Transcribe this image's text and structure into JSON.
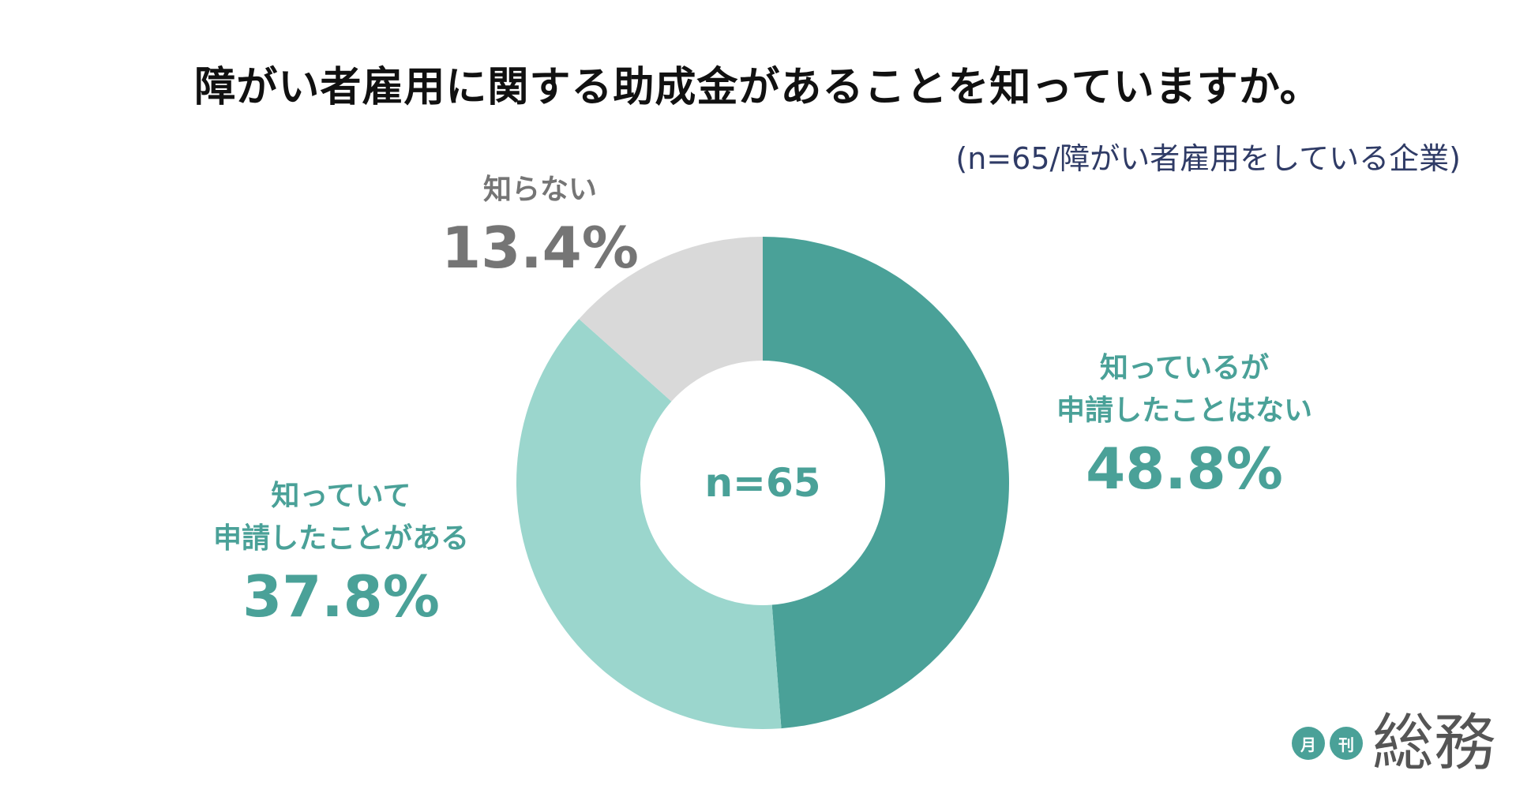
{
  "title": "障がい者雇用に関する助成金があることを知っていますか。",
  "subtitle": "(n=65/障がい者雇用をしている企業)",
  "center_label": "n=65",
  "colors": {
    "knows_not_applied": "#4aa198",
    "knows_applied": "#9bd6cd",
    "does_not_know": "#d9d9d9",
    "label_gray": "#757575"
  },
  "chart_data": {
    "type": "pie",
    "title": "障がい者雇用に関する助成金があることを知っていますか。",
    "subtitle": "(n=65/障がい者雇用をしている企業)",
    "donut": true,
    "center_text": "n=65",
    "slices": [
      {
        "label_line1": "知っているが",
        "label_line2": "申請したことはない",
        "value": 48.8,
        "value_label": "48.8%",
        "color": "#4aa198"
      },
      {
        "label_line1": "知っていて",
        "label_line2": "申請したことがある",
        "value": 37.8,
        "value_label": "37.8%",
        "color": "#9bd6cd"
      },
      {
        "label_line1": "知らない",
        "label_line2": "",
        "value": 13.4,
        "value_label": "13.4%",
        "color": "#d9d9d9"
      }
    ]
  },
  "logo": {
    "circle1": "月",
    "circle2": "刊",
    "text": "総務"
  }
}
